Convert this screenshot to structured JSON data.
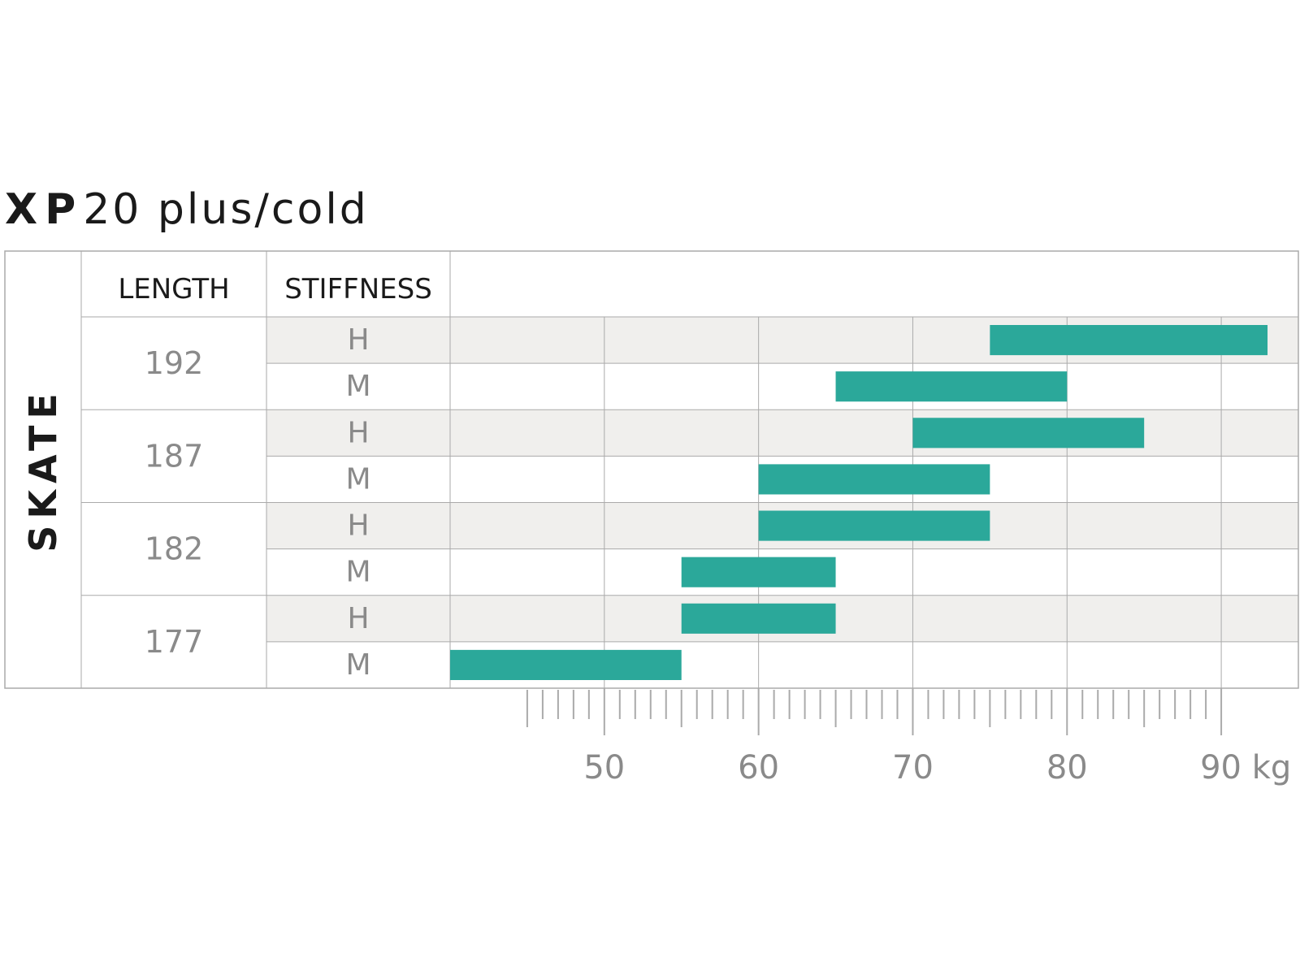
{
  "title": {
    "bold": "XP",
    "light": "20 plus/cold"
  },
  "colors": {
    "bar": "#2ba89a",
    "shaded_row": "#f0efed",
    "grid": "#aaaaaa",
    "text": "#1a1a1a",
    "muted_text": "#8a8a8a"
  },
  "chart_data": {
    "type": "bar",
    "orientation": "horizontal-range",
    "discipline": "SKATE",
    "column_headers": {
      "length": "LENGTH",
      "stiffness": "STIFFNESS"
    },
    "x_unit": "kg",
    "xlim": [
      40,
      95
    ],
    "x_ticks": [
      50,
      60,
      70,
      80,
      90
    ],
    "x_tick_labels": [
      "50",
      "60",
      "70",
      "80",
      "90 kg"
    ],
    "grid": true,
    "groups": [
      {
        "length": "192",
        "rows": [
          {
            "stiffness": "H",
            "range": [
              75,
              93
            ]
          },
          {
            "stiffness": "M",
            "range": [
              65,
              80
            ]
          }
        ]
      },
      {
        "length": "187",
        "rows": [
          {
            "stiffness": "H",
            "range": [
              70,
              85
            ]
          },
          {
            "stiffness": "M",
            "range": [
              60,
              75
            ]
          }
        ]
      },
      {
        "length": "182",
        "rows": [
          {
            "stiffness": "H",
            "range": [
              60,
              75
            ]
          },
          {
            "stiffness": "M",
            "range": [
              55,
              65
            ]
          }
        ]
      },
      {
        "length": "177",
        "rows": [
          {
            "stiffness": "H",
            "range": [
              55,
              65
            ]
          },
          {
            "stiffness": "M",
            "range": [
              40,
              55
            ]
          }
        ]
      }
    ]
  }
}
